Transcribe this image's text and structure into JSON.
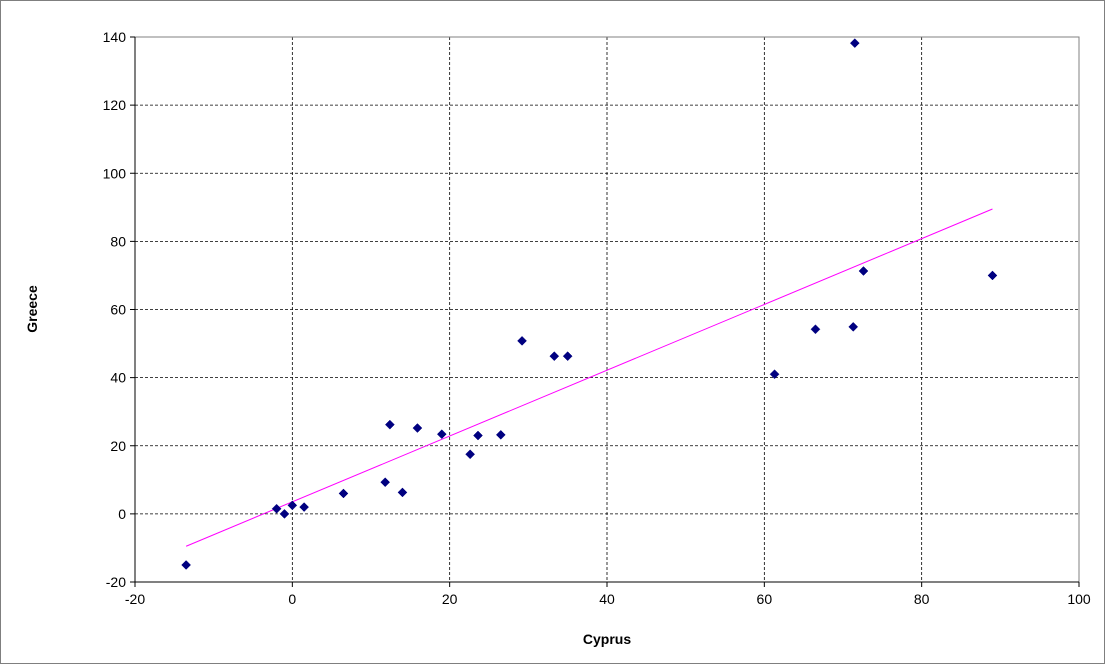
{
  "chart_data": {
    "type": "scatter",
    "title": "",
    "xlabel": "Cyprus",
    "ylabel": "Greece",
    "xlim": [
      -20,
      100
    ],
    "ylim": [
      -20,
      140
    ],
    "xticks": [
      -20,
      0,
      20,
      40,
      60,
      80,
      100
    ],
    "yticks": [
      -20,
      0,
      20,
      40,
      60,
      80,
      100,
      120,
      140
    ],
    "grid": true,
    "legend": "none",
    "series": [
      {
        "marker": "diamond",
        "color": "#000080",
        "points": [
          {
            "x": -13.5,
            "y": -15
          },
          {
            "x": -2,
            "y": 1.5
          },
          {
            "x": -1,
            "y": 0
          },
          {
            "x": 0,
            "y": 2.5
          },
          {
            "x": 1.5,
            "y": 2
          },
          {
            "x": 6.5,
            "y": 6
          },
          {
            "x": 11.8,
            "y": 9.3
          },
          {
            "x": 12.4,
            "y": 26.2
          },
          {
            "x": 14,
            "y": 6.3
          },
          {
            "x": 15.9,
            "y": 25.2
          },
          {
            "x": 19,
            "y": 23.4
          },
          {
            "x": 22.6,
            "y": 17.5
          },
          {
            "x": 23.6,
            "y": 23
          },
          {
            "x": 26.5,
            "y": 23.2
          },
          {
            "x": 29.2,
            "y": 50.8
          },
          {
            "x": 33.3,
            "y": 46.3
          },
          {
            "x": 35,
            "y": 46.3
          },
          {
            "x": 61.3,
            "y": 41
          },
          {
            "x": 66.5,
            "y": 54.2
          },
          {
            "x": 71.3,
            "y": 54.9
          },
          {
            "x": 71.5,
            "y": 138.2
          },
          {
            "x": 72.6,
            "y": 71.3
          },
          {
            "x": 89,
            "y": 70
          }
        ]
      }
    ],
    "trendline": {
      "type": "linear",
      "color": "#ff00ff",
      "x": [
        -13.5,
        89
      ],
      "y": [
        -9.5,
        89.5
      ]
    }
  }
}
